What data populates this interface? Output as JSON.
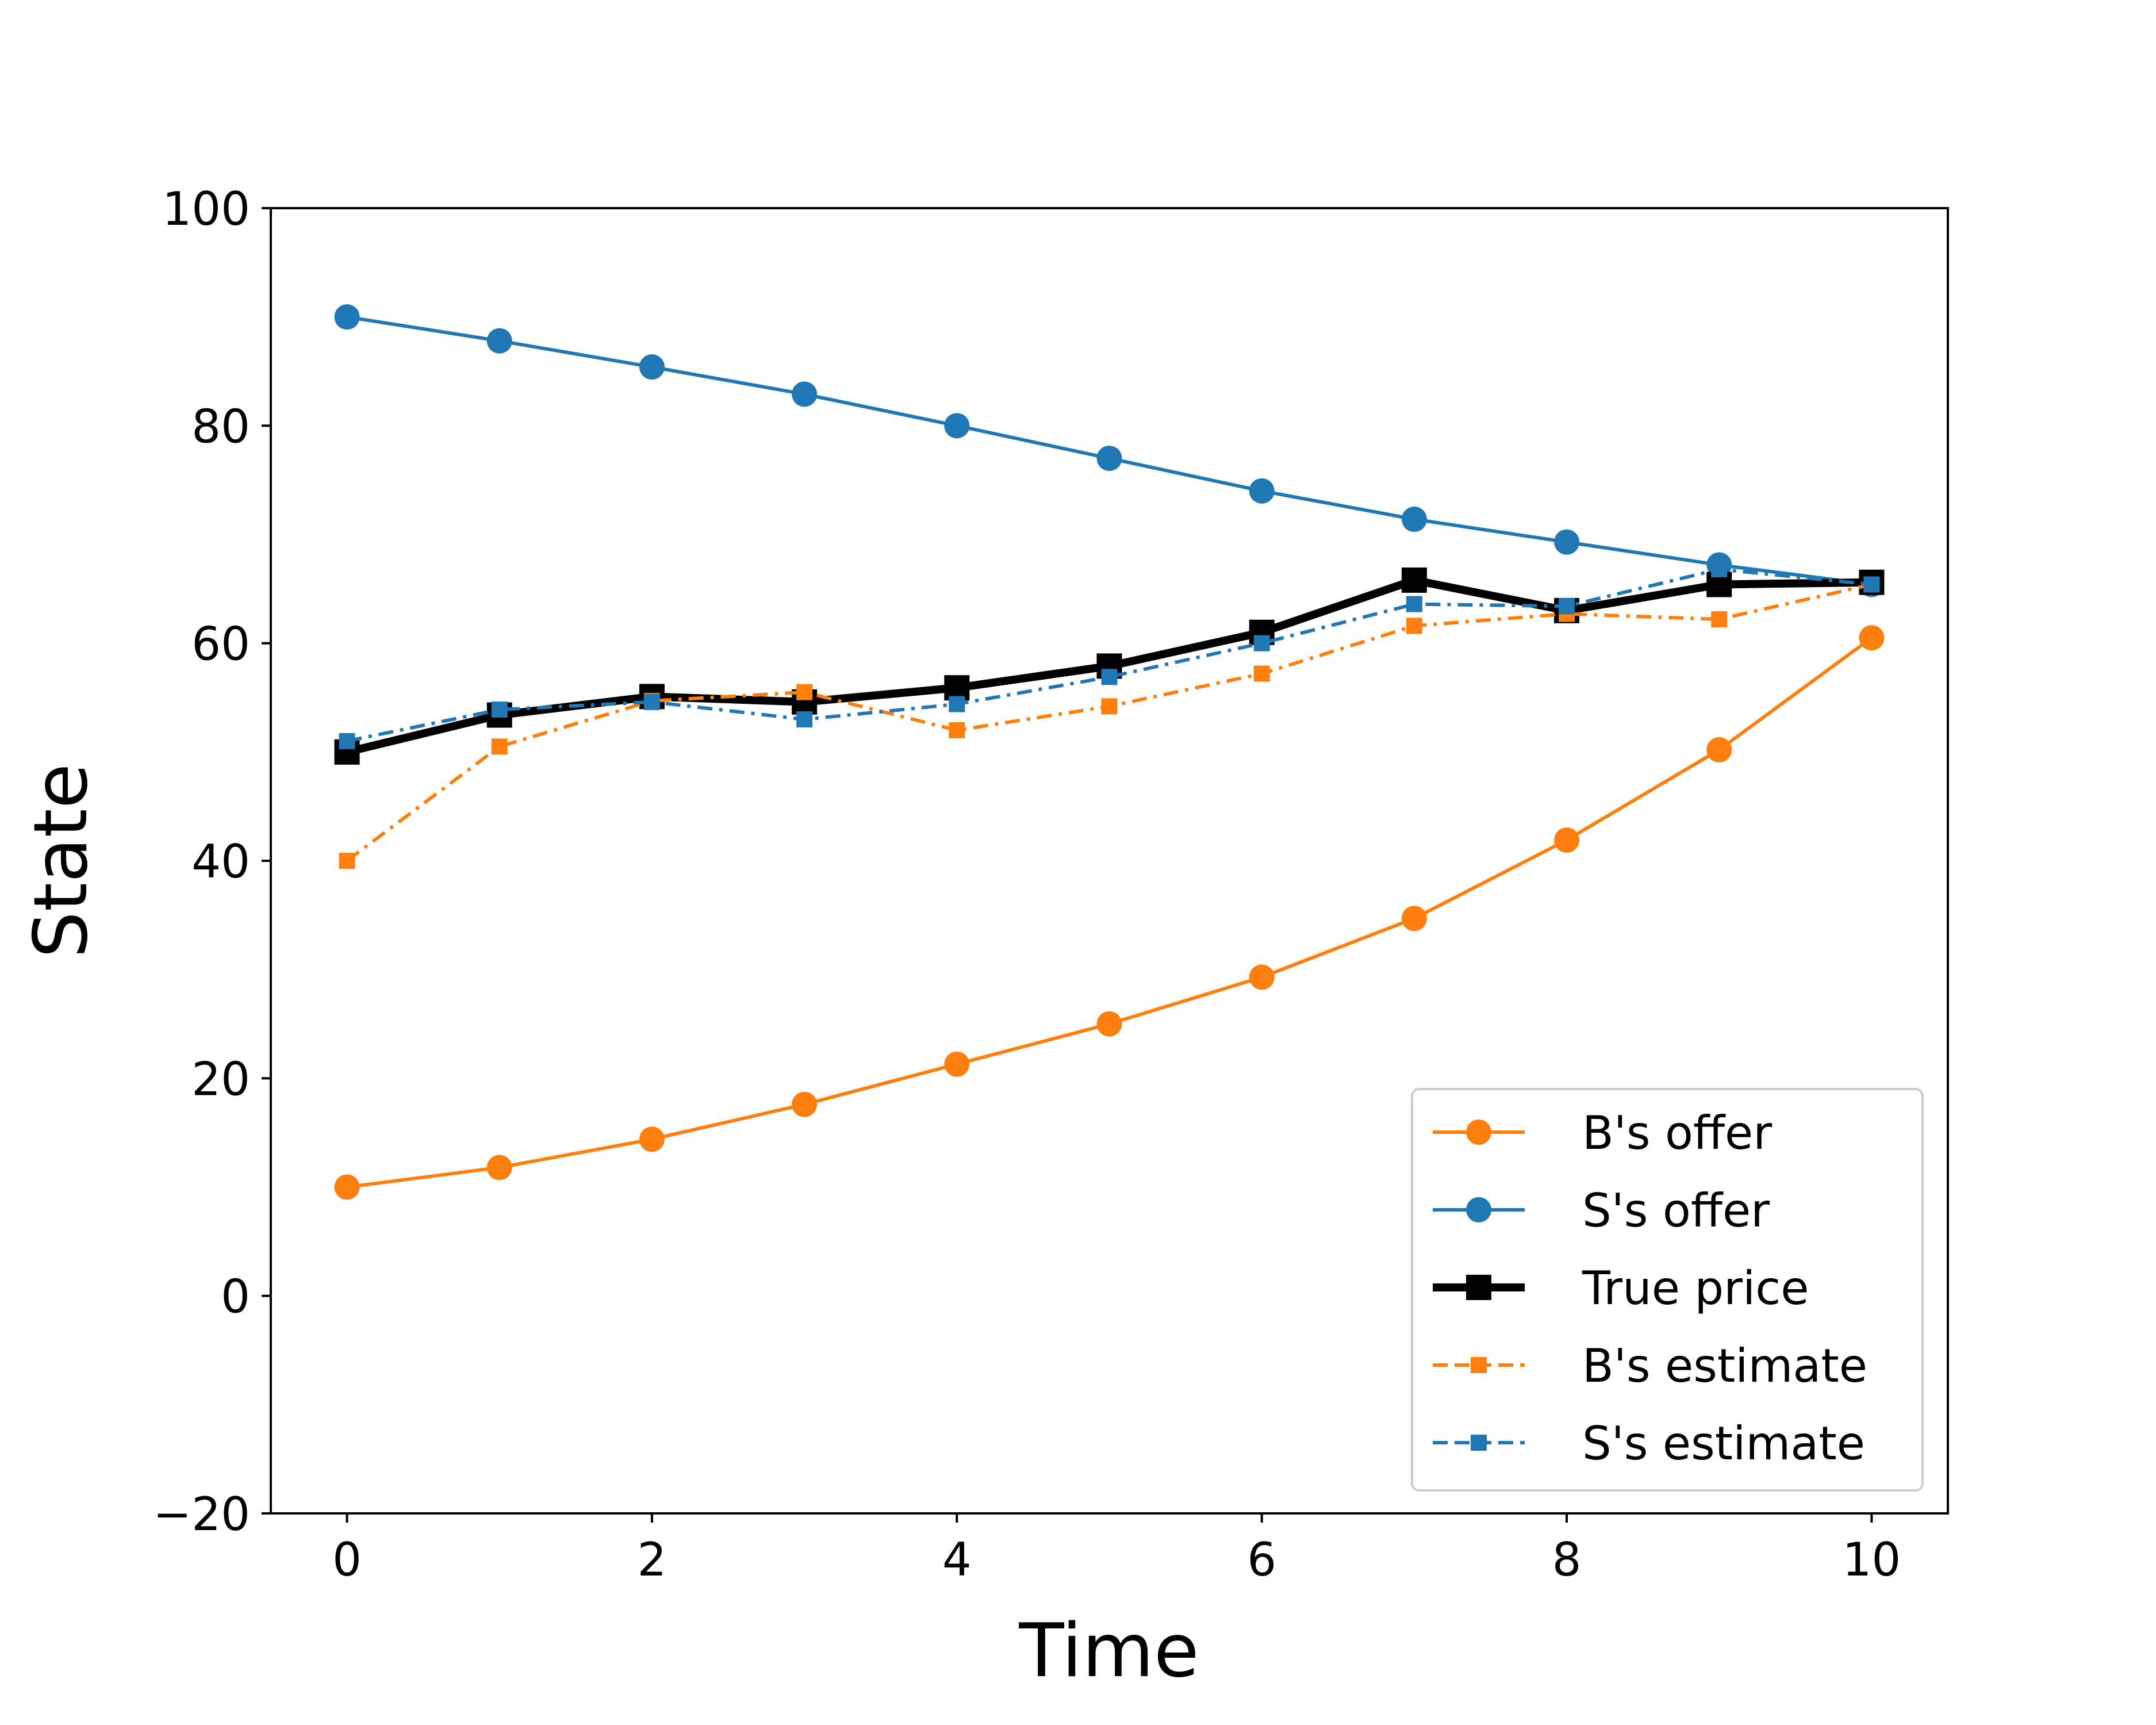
{
  "chart_data": {
    "type": "line",
    "title": "",
    "xlabel": "Time",
    "ylabel": "State",
    "xlim": [
      -0.5,
      10.5
    ],
    "ylim": [
      -20,
      100
    ],
    "xticks": [
      0,
      2,
      4,
      6,
      8,
      10
    ],
    "yticks": [
      -20,
      0,
      20,
      40,
      60,
      80,
      100
    ],
    "grid": false,
    "legend_position": "lower-right",
    "x": [
      0,
      1,
      2,
      3,
      4,
      5,
      6,
      7,
      8,
      9,
      10
    ],
    "series": [
      {
        "name": "B's offer",
        "color": "#ff7f0e",
        "style": "solid",
        "marker": "circle",
        "values": [
          10,
          11.8,
          14.4,
          17.6,
          21.3,
          25.0,
          29.3,
          34.7,
          41.9,
          50.2,
          60.5
        ]
      },
      {
        "name": "S's offer",
        "color": "#1f77b4",
        "style": "solid",
        "marker": "circle",
        "values": [
          90,
          87.8,
          85.4,
          82.9,
          80.0,
          77.0,
          74.0,
          71.4,
          69.3,
          67.2,
          65.4
        ]
      },
      {
        "name": "True price",
        "color": "#000000",
        "style": "solid-thick",
        "marker": "square",
        "values": [
          50,
          53.4,
          55.1,
          54.6,
          55.9,
          57.9,
          61.0,
          65.8,
          63.0,
          65.4,
          65.6
        ]
      },
      {
        "name": "B's estimate",
        "color": "#ff7f0e",
        "style": "dashdot",
        "marker": "square-small",
        "values": [
          40,
          50.5,
          54.7,
          55.5,
          52.0,
          54.2,
          57.2,
          61.6,
          62.7,
          62.2,
          65.4
        ]
      },
      {
        "name": "S's estimate",
        "color": "#1f77b4",
        "style": "dashdot",
        "marker": "square-small",
        "values": [
          51,
          53.9,
          54.6,
          53.0,
          54.4,
          56.9,
          60.0,
          63.6,
          63.4,
          66.8,
          65.4
        ]
      }
    ]
  }
}
